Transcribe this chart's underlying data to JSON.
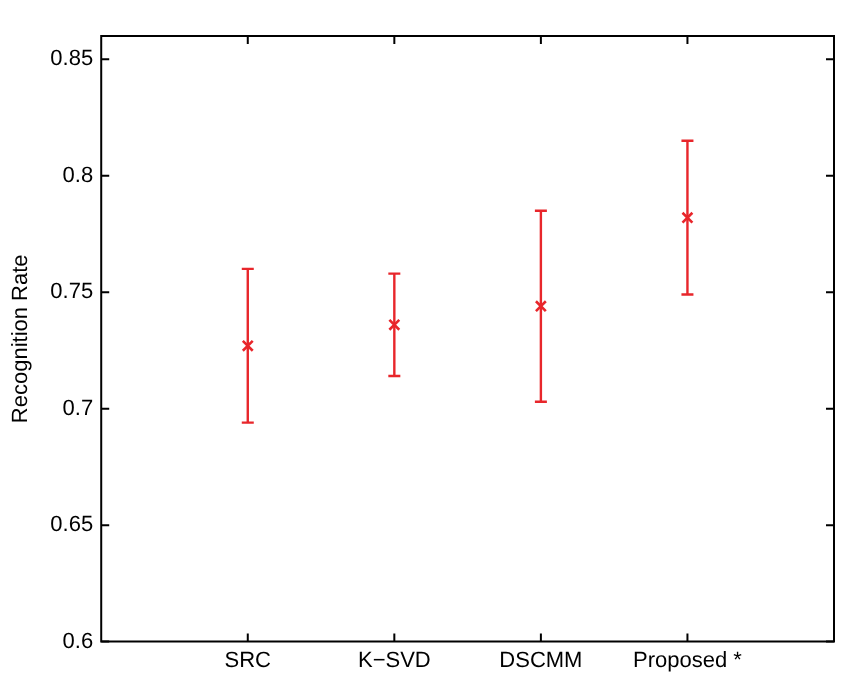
{
  "chart_data": {
    "type": "scatter",
    "ylabel": "Recognition Rate",
    "categories": [
      "SRC",
      "K−SVD",
      "DSCMM",
      "Proposed *"
    ],
    "series": [
      {
        "color": "#e8262b",
        "values": [
          0.727,
          0.736,
          0.744,
          0.782
        ],
        "errors": [
          [
            0.694,
            0.76
          ],
          [
            0.714,
            0.758
          ],
          [
            0.703,
            0.785
          ],
          [
            0.749,
            0.815
          ]
        ]
      }
    ],
    "ylim": [
      0.6,
      0.86
    ],
    "yticks": [
      0.6,
      0.65,
      0.7,
      0.75,
      0.8,
      0.85
    ],
    "grid": false,
    "legend": false,
    "marker": "cross",
    "line_style": "none"
  }
}
